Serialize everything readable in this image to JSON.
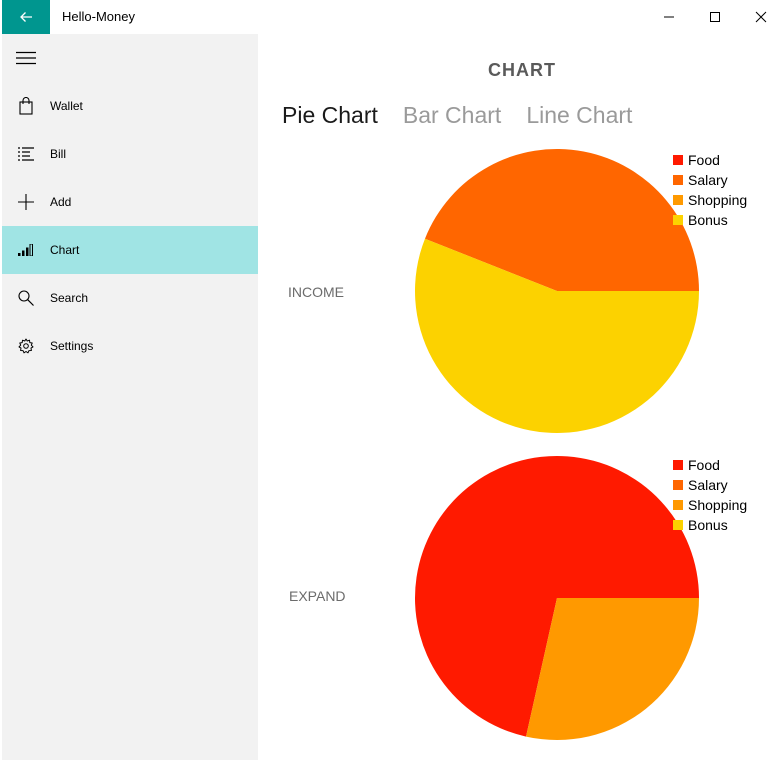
{
  "window": {
    "title": "Hello-Money"
  },
  "titlebar": {
    "back_icon": "back-arrow-icon",
    "minimize_icon": "minimize-icon",
    "maximize_icon": "maximize-icon",
    "close_icon": "close-icon",
    "accent": "#00968f"
  },
  "sidebar": {
    "menu_icon": "hamburger-icon",
    "items": [
      {
        "label": "Wallet",
        "icon": "shopping-bag-icon",
        "active": false
      },
      {
        "label": "Bill",
        "icon": "list-icon",
        "active": false
      },
      {
        "label": "Add",
        "icon": "plus-icon",
        "active": false
      },
      {
        "label": "Chart",
        "icon": "signal-bars-icon",
        "active": true
      },
      {
        "label": "Search",
        "icon": "search-icon",
        "active": false
      },
      {
        "label": "Settings",
        "icon": "gear-icon",
        "active": false
      }
    ],
    "active_color": "#a0e4e4"
  },
  "main": {
    "title": "CHART",
    "tabs": [
      {
        "label": "Pie Chart",
        "active": true
      },
      {
        "label": "Bar Chart",
        "active": false
      },
      {
        "label": "Line Chart",
        "active": false
      }
    ]
  },
  "chart_data": [
    {
      "type": "pie",
      "label": "INCOME",
      "legend": [
        {
          "name": "Food",
          "color": "#ff1a00"
        },
        {
          "name": "Salary",
          "color": "#ff6600"
        },
        {
          "name": "Shopping",
          "color": "#ff9900"
        },
        {
          "name": "Bonus",
          "color": "#fcd200"
        }
      ],
      "slices": [
        {
          "name": "Food",
          "value": 0,
          "color": "#ff1a00"
        },
        {
          "name": "Salary",
          "value": 44,
          "color": "#ff6600"
        },
        {
          "name": "Shopping",
          "value": 0,
          "color": "#ff9900"
        },
        {
          "name": "Bonus",
          "value": 56,
          "color": "#fcd200"
        }
      ],
      "legend_position": "top-right"
    },
    {
      "type": "pie",
      "label": "EXPAND",
      "legend": [
        {
          "name": "Food",
          "color": "#ff1a00"
        },
        {
          "name": "Salary",
          "color": "#ff6600"
        },
        {
          "name": "Shopping",
          "color": "#ff9900"
        },
        {
          "name": "Bonus",
          "color": "#fcd200"
        }
      ],
      "slices": [
        {
          "name": "Food",
          "value": 71.5,
          "color": "#ff1a00"
        },
        {
          "name": "Salary",
          "value": 0,
          "color": "#ff6600"
        },
        {
          "name": "Shopping",
          "value": 28.5,
          "color": "#ff9900"
        },
        {
          "name": "Bonus",
          "value": 0,
          "color": "#fcd200"
        }
      ],
      "legend_position": "top-right"
    }
  ]
}
